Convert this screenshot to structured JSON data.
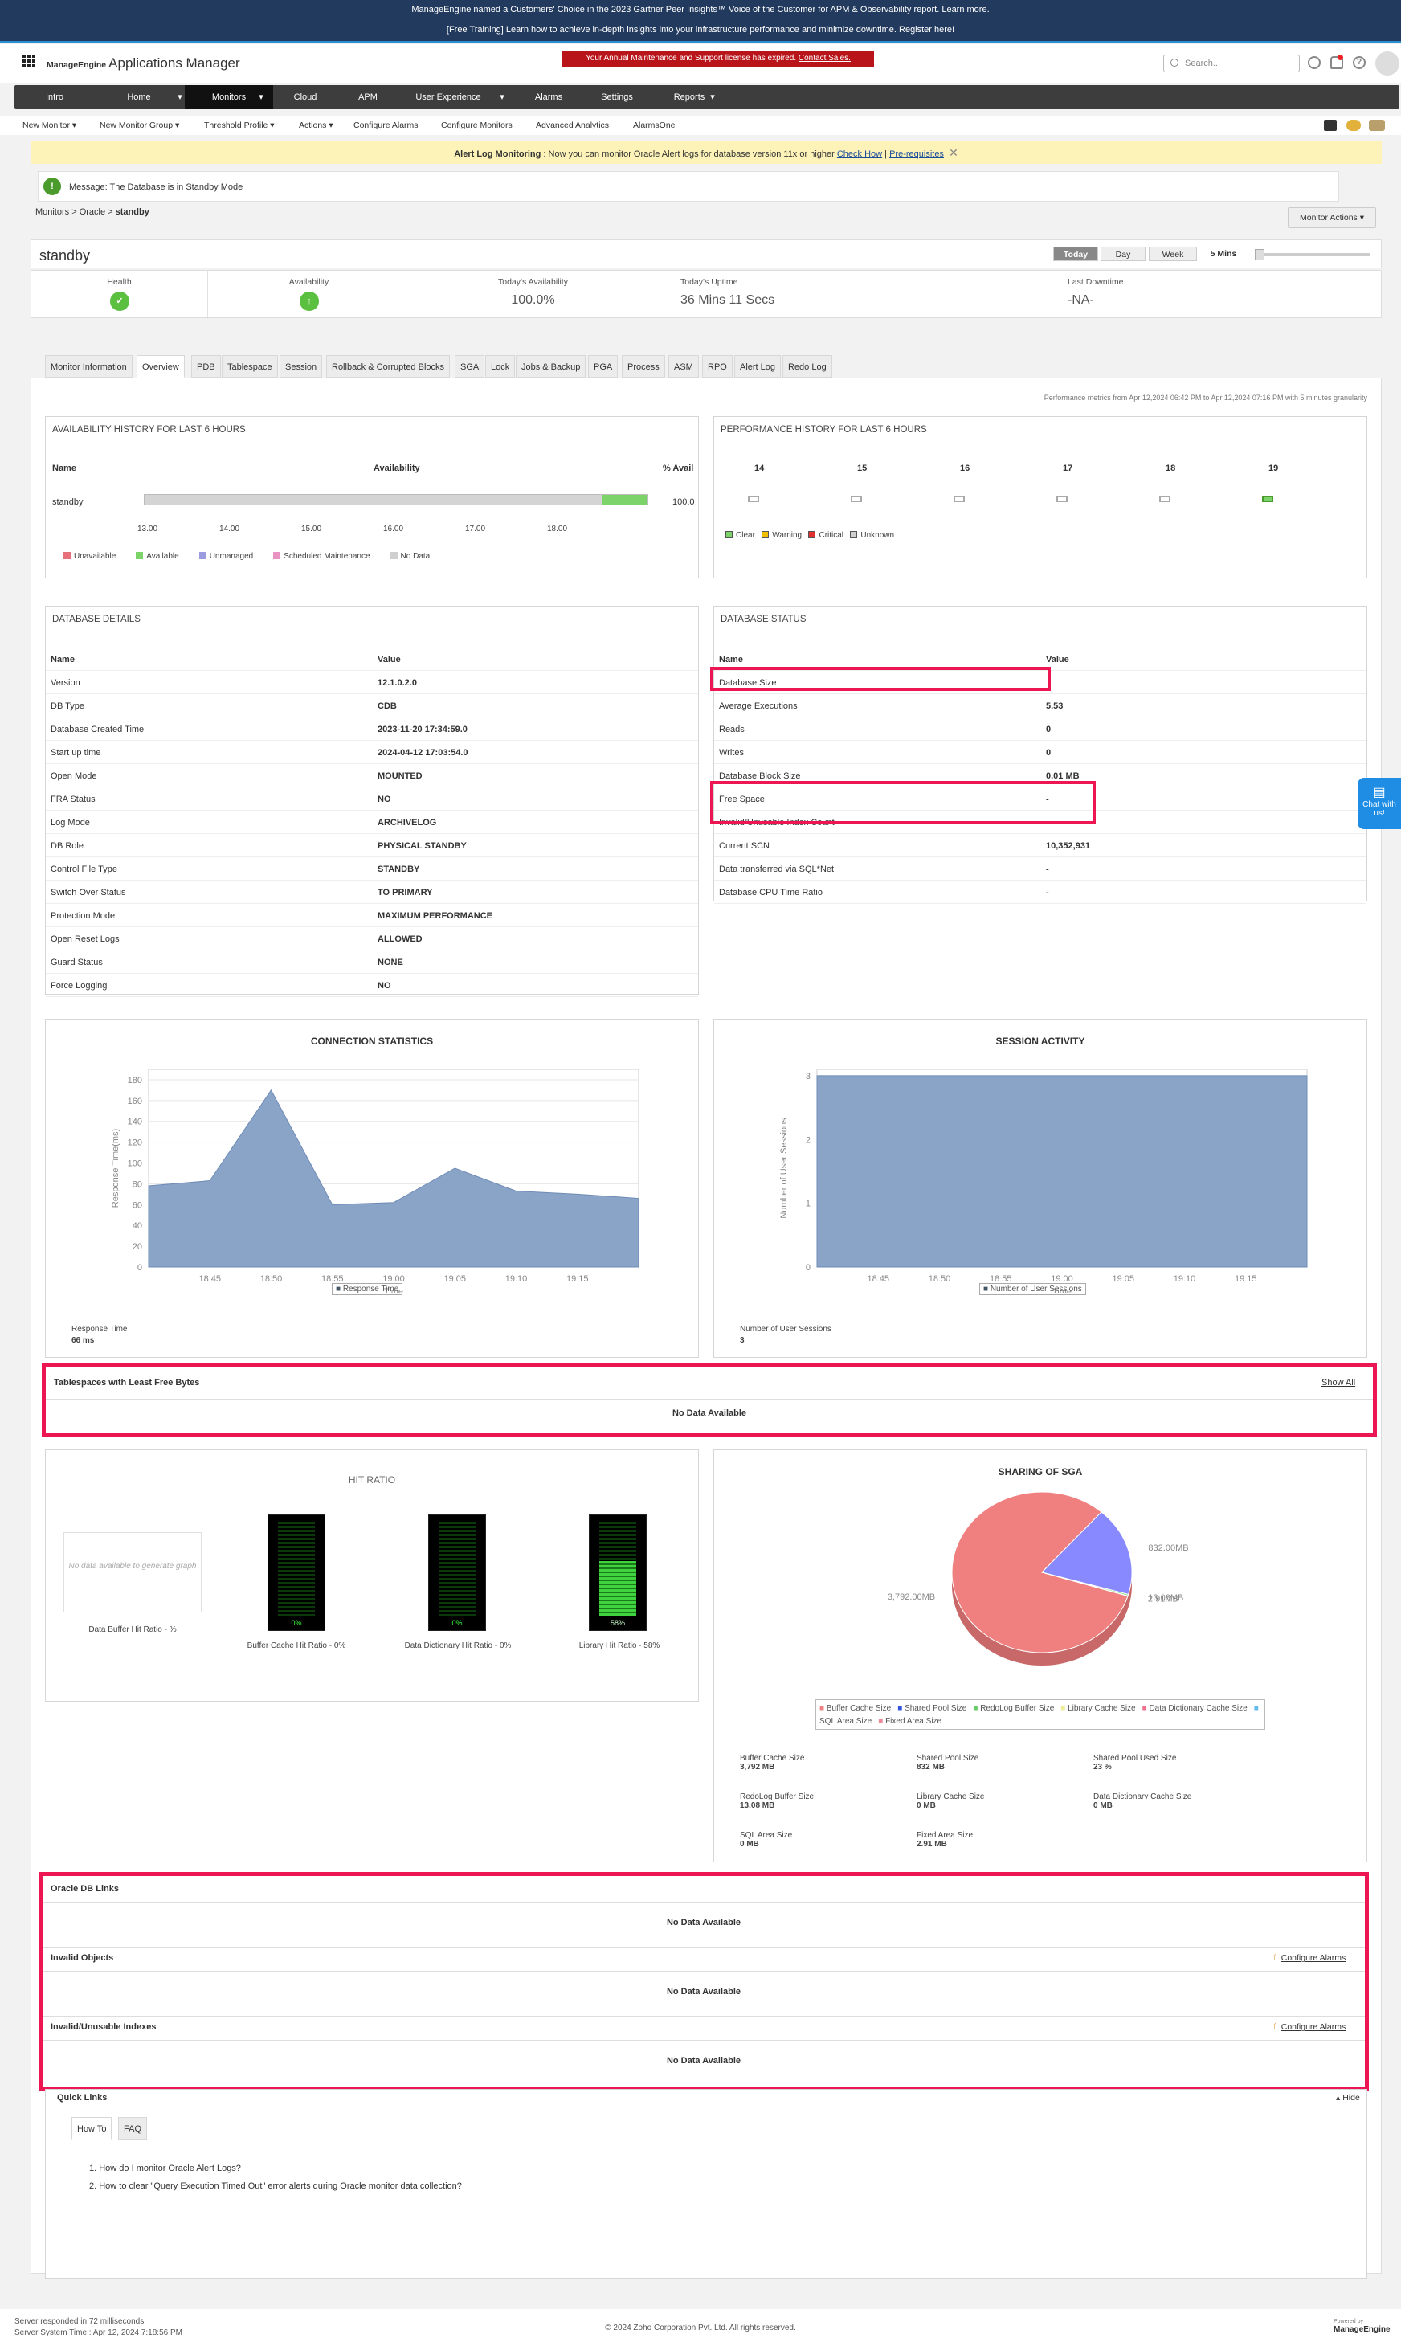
{
  "banner": {
    "line1": "ManageEngine named a Customers' Choice in the 2023 Gartner Peer Insights™ Voice of the Customer for APM & Observability report. Learn more.",
    "line2": "[Free Training] Learn how to achieve in-depth insights into your infrastructure performance and minimize downtime. Register here!"
  },
  "header": {
    "brand": "ManageEngine",
    "app": "Applications Manager",
    "license": "Your Annual Maintenance and Support license has expired.",
    "contact": "Contact Sales.",
    "search_placeholder": "Search..."
  },
  "nav": [
    "Intro",
    "Home",
    "Monitors",
    "Cloud",
    "APM",
    "User Experience",
    "Alarms",
    "Settings",
    "Reports"
  ],
  "subnav": [
    "New Monitor ▾",
    "New Monitor Group ▾",
    "Threshold Profile ▾",
    "Actions ▾",
    "Configure Alarms",
    "Configure Monitors",
    "Advanced Analytics",
    "AlarmsOne"
  ],
  "alert": {
    "title": "Alert Log Monitoring",
    "text": " : Now you can monitor Oracle Alert logs for database version 11x or higher ",
    "link1": "Check How",
    "sep": " | ",
    "link2": "Pre-requisites"
  },
  "message": "Message: The Database is in Standby Mode",
  "breadcrumb": {
    "a": "Monitors > Oracle > ",
    "b": "standby"
  },
  "monitor_actions": "Monitor Actions ▾",
  "monitor_name": "standby",
  "periods": [
    "Today",
    "Day",
    "Week",
    "5 Mins"
  ],
  "summary": {
    "health_label": "Health",
    "avail_label": "Availability",
    "today_avail_label": "Today's Availability",
    "today_avail": "100.0%",
    "uptime_label": "Today's Uptime",
    "uptime": "36 Mins 11 Secs",
    "downtime_label": "Last Downtime",
    "downtime": "-NA-"
  },
  "tabs": [
    "Monitor Information",
    "Overview",
    "PDB",
    "Tablespace",
    "Session",
    "Rollback & Corrupted Blocks",
    "SGA",
    "Lock",
    "Jobs & Backup",
    "PGA",
    "Process",
    "ASM",
    "RPO",
    "Alert Log",
    "Redo Log"
  ],
  "perf_note": "Performance metrics from Apr 12,2024 06:42 PM to Apr 12,2024 07:16 PM with 5 minutes granularity",
  "availability": {
    "title": "AVAILABILITY HISTORY FOR LAST 6 HOURS",
    "col_name": "Name",
    "col_avail": "Availability",
    "col_pct": "% Avail",
    "name": "standby",
    "pct": "100.0",
    "available_fraction": 0.09,
    "ticks": [
      "13.00",
      "14.00",
      "15.00",
      "16.00",
      "17.00",
      "18.00"
    ],
    "legend": [
      "Unavailable",
      "Available",
      "Unmanaged",
      "Scheduled Maintenance",
      "No Data"
    ],
    "legend_colors": [
      "#e8707a",
      "#7cd36a",
      "#9b9be0",
      "#e893c2",
      "#cfcfcf"
    ]
  },
  "performance": {
    "title": "PERFORMANCE HISTORY FOR LAST 6 HOURS",
    "hours": [
      "14",
      "15",
      "16",
      "17",
      "18",
      "19"
    ],
    "legend": [
      "Clear",
      "Warning",
      "Critical",
      "Unknown"
    ],
    "legend_colors": [
      "#7cd36a",
      "#f0c000",
      "#e03030",
      "#cfcfcf"
    ]
  },
  "db_details": {
    "title": "DATABASE DETAILS",
    "col_name": "Name",
    "col_value": "Value",
    "rows": [
      [
        "Version",
        "12.1.0.2.0"
      ],
      [
        "DB Type",
        "CDB"
      ],
      [
        "Database Created Time",
        "2023-11-20 17:34:59.0"
      ],
      [
        "Start up time",
        "2024-04-12 17:03:54.0"
      ],
      [
        "Open Mode",
        "MOUNTED"
      ],
      [
        "FRA Status",
        "NO"
      ],
      [
        "Log Mode",
        "ARCHIVELOG"
      ],
      [
        "DB Role",
        "PHYSICAL STANDBY"
      ],
      [
        "Control File Type",
        "STANDBY"
      ],
      [
        "Switch Over Status",
        "TO PRIMARY"
      ],
      [
        "Protection Mode",
        "MAXIMUM PERFORMANCE"
      ],
      [
        "Open Reset Logs",
        "ALLOWED"
      ],
      [
        "Guard Status",
        "NONE"
      ],
      [
        "Force Logging",
        "NO"
      ]
    ]
  },
  "db_status": {
    "title": "DATABASE STATUS",
    "col_name": "Name",
    "col_value": "Value",
    "rows": [
      [
        "Database Size",
        ""
      ],
      [
        "Average Executions",
        "5.53"
      ],
      [
        "Reads",
        "0"
      ],
      [
        "Writes",
        "0"
      ],
      [
        "Database Block Size",
        "0.01 MB"
      ],
      [
        "Free Space",
        "-"
      ],
      [
        "Invalid/Unusable Index Count",
        "-"
      ],
      [
        "Current SCN",
        "10,352,931"
      ],
      [
        "Data transferred via SQL*Net",
        "-"
      ],
      [
        "Database CPU Time Ratio",
        "-"
      ]
    ]
  },
  "connection": {
    "title": "CONNECTION STATISTICS",
    "legend": "Response Time",
    "foot_label": "Response Time",
    "foot_value": "66 ms"
  },
  "session": {
    "title": "SESSION ACTIVITY",
    "legend": "Number of User Sessions",
    "foot_label": "Number of User Sessions",
    "foot_value": "3"
  },
  "chart_data": [
    {
      "type": "area",
      "title": "CONNECTION STATISTICS",
      "xlabel": "Time",
      "ylabel": "Response Time(ms)",
      "x": [
        "18:40",
        "18:45",
        "18:50",
        "18:55",
        "19:00",
        "19:05",
        "19:10",
        "19:15",
        "19:20"
      ],
      "series": [
        {
          "name": "Response Time",
          "values": [
            78,
            83,
            170,
            60,
            62,
            95,
            73,
            70,
            66
          ]
        }
      ],
      "xticks": [
        "18:45",
        "18:50",
        "18:55",
        "19:00",
        "19:05",
        "19:10",
        "19:15"
      ],
      "yticks": [
        0,
        20,
        40,
        60,
        80,
        100,
        120,
        140,
        160,
        180
      ],
      "ylim": [
        0,
        190
      ]
    },
    {
      "type": "area",
      "title": "SESSION ACTIVITY",
      "xlabel": "Time",
      "ylabel": "Number of User Sessions",
      "x": [
        "18:40",
        "19:20"
      ],
      "series": [
        {
          "name": "Number of User Sessions",
          "values": [
            3,
            3
          ]
        }
      ],
      "xticks": [
        "18:45",
        "18:50",
        "18:55",
        "19:00",
        "19:05",
        "19:10",
        "19:15"
      ],
      "yticks": [
        0,
        1,
        2,
        3
      ],
      "ylim": [
        0,
        3.1
      ]
    },
    {
      "type": "pie",
      "title": "SHARING OF SGA",
      "categories": [
        "Buffer Cache Size",
        "Shared Pool Size",
        "RedoLog Buffer Size",
        "Library Cache Size",
        "Data Dictionary Cache Size",
        "SQL Area Size",
        "Fixed Area Size"
      ],
      "values": [
        3792,
        832,
        13.08,
        0,
        0,
        0,
        2.91
      ],
      "labels": [
        "3,792.00MB",
        "832.00MB",
        "13.08MB",
        "",
        "",
        "",
        "2.91MB"
      ]
    }
  ],
  "tablespaces": {
    "title": "Tablespaces with Least Free Bytes",
    "show_all": "Show All",
    "empty": "No Data Available"
  },
  "hit_ratio": {
    "title": "HIT RATIO",
    "nodata": "No data available to generate graph",
    "data_buffer": "Data Buffer Hit Ratio - %",
    "meters": [
      {
        "label": "Buffer Cache Hit Ratio - 0%",
        "value": 0,
        "pct": "0%"
      },
      {
        "label": "Data Dictionary Hit Ratio - 0%",
        "value": 0,
        "pct": "0%"
      },
      {
        "label": "Library Hit Ratio - 58%",
        "value": 58,
        "pct": "58%"
      }
    ]
  },
  "sga": {
    "title": "SHARING OF SGA",
    "legend_colors": [
      "#f08080",
      "#3355dd",
      "#66cc66",
      "#eeee99",
      "#f07090",
      "#66bbee",
      "#ee8899"
    ],
    "stats": [
      [
        "Buffer Cache Size",
        "3,792 MB"
      ],
      [
        "Shared Pool Size",
        "832 MB"
      ],
      [
        "Shared Pool Used Size",
        "23 %"
      ],
      [
        "RedoLog Buffer Size",
        "13.08 MB"
      ],
      [
        "Library Cache Size",
        "0 MB"
      ],
      [
        "Data Dictionary Cache Size",
        "0 MB"
      ],
      [
        "SQL Area Size",
        "0 MB"
      ],
      [
        "Fixed Area Size",
        "2.91 MB"
      ]
    ]
  },
  "links": {
    "oracle_db_links": "Oracle DB Links",
    "invalid_objects": "Invalid Objects",
    "invalid_indexes": "Invalid/Unusable Indexes",
    "configure": "Configure Alarms",
    "empty": "No Data Available"
  },
  "quick": {
    "title": "Quick Links",
    "hide": "Hide",
    "tab1": "How To",
    "tab2": "FAQ",
    "q1": "1. How do I monitor Oracle Alert Logs?",
    "q2": "2. How to clear \"Query Execution Timed Out\" error alerts during Oracle monitor data collection?"
  },
  "chat": "Chat with us!",
  "footer": {
    "resp": "Server responded in 72 milliseconds",
    "time": "Server System Time : Apr 12, 2024 7:18:56 PM",
    "copy": "© 2024 Zoho Corporation Pvt. Ltd.   All rights reserved.",
    "powered": "Powered by",
    "brand": "ManageEngine"
  }
}
